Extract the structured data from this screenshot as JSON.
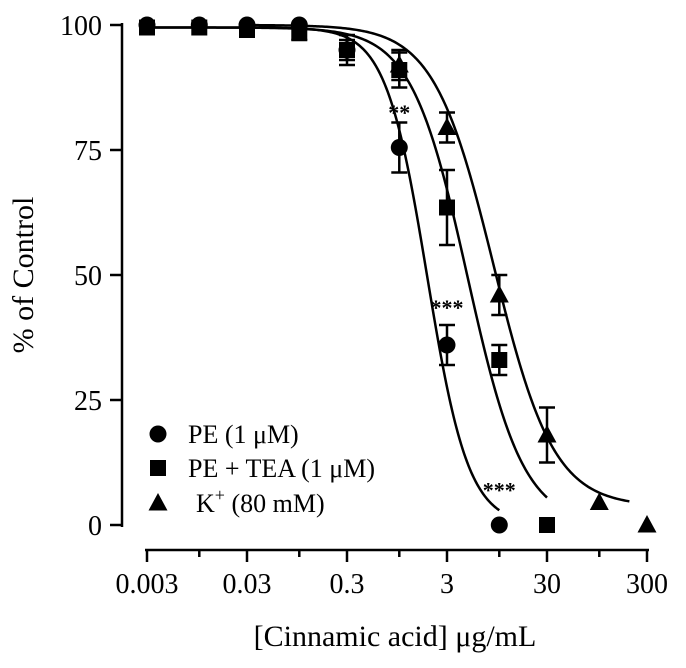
{
  "chart_data": {
    "type": "scatter",
    "title": "",
    "xlabel": "[Cinnamic acid] μg/mL",
    "ylabel": "% of Control",
    "x_scale": "log",
    "xlim": [
      0.003,
      300
    ],
    "ylim": [
      0,
      100
    ],
    "x_ticks": [
      0.003,
      0.01,
      0.03,
      0.1,
      0.3,
      1,
      3,
      10,
      30,
      100,
      300
    ],
    "x_tick_labels": [
      {
        "value": 0.003,
        "label": "0.003"
      },
      {
        "value": 0.03,
        "label": "0.03"
      },
      {
        "value": 0.3,
        "label": "0.3"
      },
      {
        "value": 3,
        "label": "3"
      },
      {
        "value": 30,
        "label": "30"
      },
      {
        "value": 300,
        "label": "300"
      }
    ],
    "y_ticks": [
      {
        "value": 0,
        "label": "0"
      },
      {
        "value": 25,
        "label": "25"
      },
      {
        "value": 50,
        "label": "50"
      },
      {
        "value": 75,
        "label": "75"
      },
      {
        "value": 100,
        "label": "100"
      }
    ],
    "grid": false,
    "legend_position": "bottom-left",
    "series": [
      {
        "name": "PE (1 μM)",
        "marker": "circle",
        "points": [
          {
            "x": 0.003,
            "y": 100,
            "err": 0
          },
          {
            "x": 0.01,
            "y": 100,
            "err": 0
          },
          {
            "x": 0.03,
            "y": 100,
            "err": 0
          },
          {
            "x": 0.1,
            "y": 100,
            "err": 0
          },
          {
            "x": 0.3,
            "y": 95,
            "err": 2
          },
          {
            "x": 1,
            "y": 75.5,
            "err": 5
          },
          {
            "x": 3,
            "y": 36,
            "err": 4
          },
          {
            "x": 10,
            "y": 0,
            "err": 0
          }
        ],
        "fit": {
          "top": 99.5,
          "bottom": 0,
          "ic50": 1.9,
          "hill": 2.1
        },
        "curve_range": [
          0.003,
          10
        ]
      },
      {
        "name": "PE + TEA (1 μM)",
        "marker": "square",
        "points": [
          {
            "x": 0.003,
            "y": 99.5,
            "err": 0
          },
          {
            "x": 0.01,
            "y": 99.5,
            "err": 0
          },
          {
            "x": 0.03,
            "y": 99,
            "err": 1
          },
          {
            "x": 0.1,
            "y": 98.5,
            "err": 1.5
          },
          {
            "x": 0.3,
            "y": 95,
            "err": 3
          },
          {
            "x": 1,
            "y": 91,
            "err": 3.5
          },
          {
            "x": 3,
            "y": 63.5,
            "err": 7.5
          },
          {
            "x": 10,
            "y": 33,
            "err": 3
          },
          {
            "x": 30,
            "y": 0,
            "err": 0
          }
        ],
        "fit": {
          "top": 99.5,
          "bottom": 0,
          "ic50": 4.8,
          "hill": 1.55
        },
        "curve_range": [
          0.003,
          30
        ]
      },
      {
        "name": "K⁺ (80 mM)",
        "marker": "triangle",
        "points": [
          {
            "x": 1,
            "y": 92,
            "err": 3
          },
          {
            "x": 3,
            "y": 79.5,
            "err": 3
          },
          {
            "x": 10,
            "y": 46,
            "err": 4
          },
          {
            "x": 30,
            "y": 18,
            "err": 5.5
          },
          {
            "x": 100,
            "y": 4.5,
            "err": 0
          },
          {
            "x": 300,
            "y": 0,
            "err": 0
          }
        ],
        "fit": {
          "top": 100,
          "bottom": 3.7,
          "ic50": 8.8,
          "hill": 1.45
        },
        "curve_range": [
          0.03,
          200
        ]
      }
    ],
    "annotations": [
      {
        "text": "**",
        "x": 1,
        "y": 81
      },
      {
        "text": "***",
        "x": 3,
        "y": 42
      },
      {
        "text": "***",
        "x": 10,
        "y": 5.5
      }
    ]
  },
  "legend": {
    "items": [
      {
        "marker": "circle",
        "text": "PE (1 μM)"
      },
      {
        "marker": "square",
        "text": "PE + TEA (1 μM)"
      },
      {
        "marker": "triangle",
        "prefix": "K",
        "sup": "+",
        "suffix": " (80 mM)"
      }
    ]
  }
}
